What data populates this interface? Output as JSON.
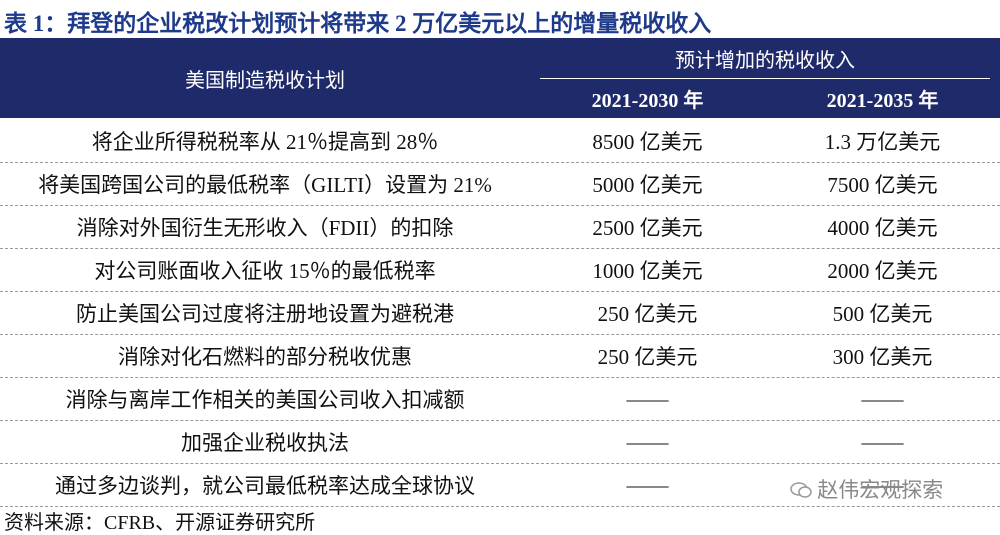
{
  "title": "表 1：拜登的企业税改计划预计将带来 2 万亿美元以上的增量税收收入",
  "table": {
    "header": {
      "plan": "美国制造税收计划",
      "group": "预计增加的税收收入",
      "periods": [
        "2021-2030 年",
        "2021-2035 年"
      ]
    },
    "rows": [
      [
        "将企业所得税税率从 21％提高到 28％",
        "8500 亿美元",
        "1.3 万亿美元"
      ],
      [
        "将美国跨国公司的最低税率（GILTI）设置为 21%",
        "5000 亿美元",
        "7500 亿美元"
      ],
      [
        "消除对外国衍生无形收入（FDII）的扣除",
        "2500 亿美元",
        "4000 亿美元"
      ],
      [
        "对公司账面收入征收 15％的最低税率",
        "1000 亿美元",
        "2000 亿美元"
      ],
      [
        "防止美国公司过度将注册地设置为避税港",
        "250 亿美元",
        "500 亿美元"
      ],
      [
        "消除对化石燃料的部分税收优惠",
        "250 亿美元",
        "300 亿美元"
      ],
      [
        "消除与离岸工作相关的美国公司收入扣减额",
        "——",
        "——"
      ],
      [
        "加强企业税收执法",
        "——",
        "——"
      ],
      [
        "通过多边谈判，就公司最低税率达成全球协议",
        "——",
        "——"
      ]
    ]
  },
  "source": "资料来源：CFRB、开源证券研究所",
  "watermark": "赵伟宏观探索"
}
